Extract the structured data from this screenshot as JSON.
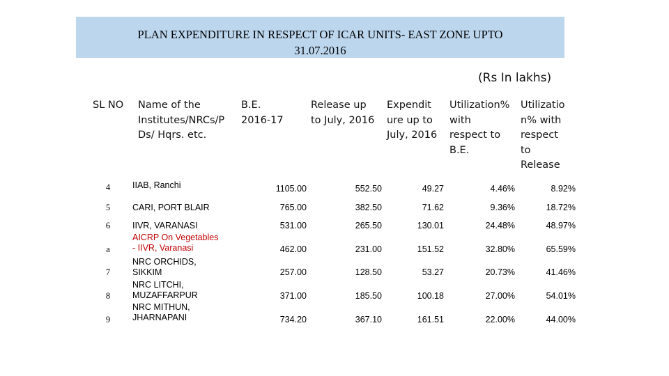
{
  "title": {
    "line1": "PLAN EXPENDITURE IN RESPECT OF ICAR UNITS- EAST ZONE UPTO",
    "line2": "31.07.2016"
  },
  "unit_note": "(Rs In lakhs)",
  "headers": {
    "sl_no": "SL NO",
    "name": "Name of the\nInstitutes/NRCs/P\nDs/ Hqrs. etc.",
    "be": "B.E.\n2016-17",
    "release": "Release up\nto July, 2016",
    "expenditure": "Expendit\nure up to\nJuly, 2016",
    "util_be": "Utilization%\nwith\nrespect to\nB.E.",
    "util_release": "Utilizatio\nn% with\nrespect\nto\nRelease"
  },
  "rows": [
    {
      "sl": "4",
      "name": "IIAB, Ranchi",
      "be": "1105.00",
      "release": "552.50",
      "exp": "49.27",
      "util_be": "4.46%",
      "util_rel": "8.92%"
    },
    {
      "sl": "5",
      "name": "CARI, PORT BLAIR",
      "be": "765.00",
      "release": "382.50",
      "exp": "71.62",
      "util_be": "9.36%",
      "util_rel": "18.72%"
    },
    {
      "sl": "6",
      "name": "IIVR, VARANASI",
      "be": "531.00",
      "release": "265.50",
      "exp": "130.01",
      "util_be": "24.48%",
      "util_rel": "48.97%"
    },
    {
      "sl": "a",
      "name": "AICRP On Vegetables\n- IIVR, Varanasi",
      "be": "462.00",
      "release": "231.00",
      "exp": "151.52",
      "util_be": "32.80%",
      "util_rel": "65.59%"
    },
    {
      "sl": "7",
      "name": "NRC ORCHIDS,\nSIKKIM",
      "be": "257.00",
      "release": "128.50",
      "exp": "53.27",
      "util_be": "20.73%",
      "util_rel": "41.46%"
    },
    {
      "sl": "8",
      "name": "NRC LITCHI,\nMUZAFFARPUR",
      "be": "371.00",
      "release": "185.50",
      "exp": "100.18",
      "util_be": "27.00%",
      "util_rel": "54.01%"
    },
    {
      "sl": "9",
      "name": "NRC MITHUN,\nJHARNAPANI",
      "be": "734.20",
      "release": "367.10",
      "exp": "161.51",
      "util_be": "22.00%",
      "util_rel": "44.00%"
    }
  ],
  "colors": {
    "title_bg": "#bcd6ee",
    "highlight_text": "#c00000"
  }
}
